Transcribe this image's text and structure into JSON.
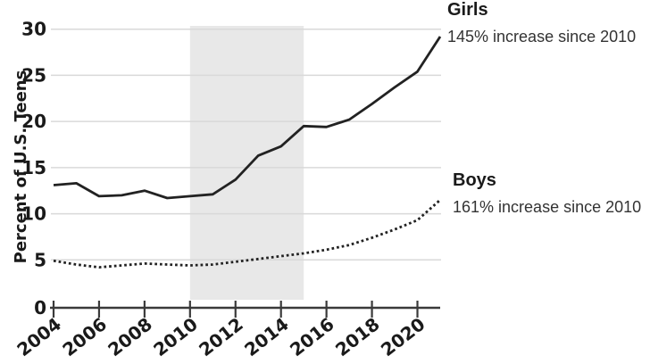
{
  "chart_data": {
    "type": "line",
    "title": "",
    "xlabel": "",
    "ylabel": "Percent of U.S. Teens",
    "x": [
      2004,
      2005,
      2006,
      2007,
      2008,
      2009,
      2010,
      2011,
      2012,
      2013,
      2014,
      2015,
      2016,
      2017,
      2018,
      2019,
      2020,
      2021
    ],
    "series": [
      {
        "name": "Girls",
        "line_style": "solid",
        "annotation": "145% increase since 2010",
        "values": [
          13.1,
          13.3,
          11.9,
          12.0,
          12.5,
          11.7,
          11.9,
          12.1,
          13.7,
          16.3,
          17.3,
          19.5,
          19.4,
          20.2,
          21.9,
          23.7,
          25.4,
          29.2
        ]
      },
      {
        "name": "Boys",
        "line_style": "dotted",
        "annotation": "161% increase since 2010",
        "values": [
          4.9,
          4.5,
          4.2,
          4.4,
          4.6,
          4.5,
          4.4,
          4.5,
          4.8,
          5.1,
          5.4,
          5.7,
          6.1,
          6.6,
          7.4,
          8.3,
          9.3,
          11.5
        ]
      }
    ],
    "xticks": [
      2004,
      2006,
      2008,
      2010,
      2012,
      2014,
      2016,
      2018,
      2020
    ],
    "yticks": [
      0,
      5,
      10,
      15,
      20,
      25,
      30
    ],
    "xlim": [
      2004,
      2021
    ],
    "ylim": [
      0,
      30
    ],
    "shaded_band": {
      "from_x": 2010,
      "to_x": 2015
    },
    "grid": "horizontal",
    "legend_position": "right-annotations"
  },
  "colors": {
    "line": "#222222",
    "grid": "#d9d9d9",
    "band": "#e8e8e8",
    "axis": "#3a3a3a",
    "label_text": "#1a1a1a",
    "annotation_text": "#333333"
  }
}
